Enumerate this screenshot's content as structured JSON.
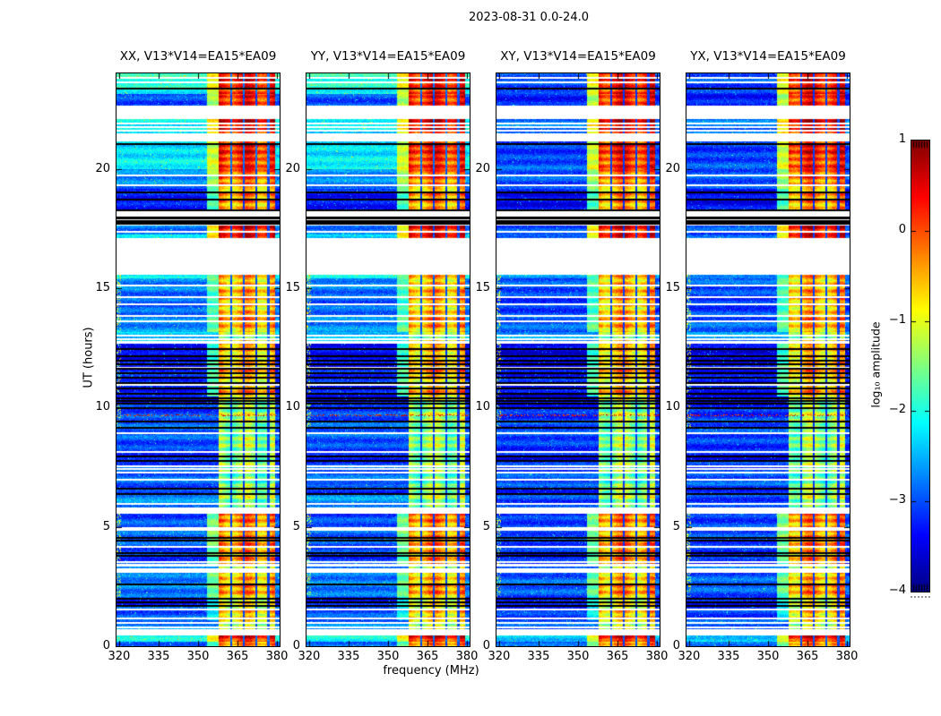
{
  "figure": {
    "title": "2023-08-31 0.0-24.0"
  },
  "chart_data": {
    "type": "heatmap",
    "title": "2023-08-31 0.0-24.0",
    "panels": [
      {
        "title": "XX, V13*V14=EA15*EA09"
      },
      {
        "title": "YY, V13*V14=EA15*EA09"
      },
      {
        "title": "XY, V13*V14=EA15*EA09"
      },
      {
        "title": "YX, V13*V14=EA15*EA09"
      }
    ],
    "xlabel": "frequency (MHz)",
    "ylabel": "UT (hours)",
    "xticks": [
      320,
      335,
      350,
      365,
      380
    ],
    "yticks": [
      0,
      5,
      10,
      15,
      20
    ],
    "xlim": [
      319,
      381
    ],
    "ylim": [
      0,
      24
    ],
    "grid": false,
    "colorbar": {
      "label": "log₁₀ amplitude",
      "ticks": [
        1,
        0,
        -1,
        -2,
        -3,
        -4
      ],
      "vmin": -4,
      "vmax": 1,
      "colormap": "jet",
      "position": "right"
    },
    "rfi_band": {
      "freq_range": [
        357.8,
        379.3
      ],
      "shoulder": [
        353.5,
        357.8
      ],
      "separators": [
        362.6,
        367.4,
        372.1,
        376.8
      ],
      "separator_width": 0.9
    },
    "time_segments": [
      [
        24.0,
        23.14,
        -2.0,
        -3.05,
        0.3,
        0
      ],
      [
        23.14,
        22.65,
        -2.9,
        -3.15,
        0.05,
        0
      ],
      [
        22.09,
        21.94,
        -2.2,
        -2.85,
        0.4,
        0
      ],
      [
        21.85,
        21.8,
        -2.3,
        -2.9,
        0.35,
        0
      ],
      [
        21.7,
        21.65,
        -2.3,
        -2.9,
        0.35,
        0
      ],
      [
        21.55,
        21.5,
        -2.3,
        -2.9,
        0.35,
        0
      ],
      [
        21.15,
        19.98,
        -2.15,
        -3.0,
        0.2,
        0
      ],
      [
        19.98,
        19.16,
        -2.8,
        -3.05,
        -0.2,
        0
      ],
      [
        19.16,
        18.23,
        -3.2,
        -3.3,
        -0.45,
        0
      ],
      [
        17.63,
        17.25,
        -2.9,
        -3.1,
        0.3,
        0
      ],
      [
        17.25,
        17.1,
        -2.35,
        -2.8,
        0.4,
        0
      ],
      [
        15.56,
        15.42,
        -2.3,
        -2.7,
        -0.6,
        1
      ],
      [
        15.42,
        13.16,
        -2.8,
        -3.0,
        -0.5,
        1
      ],
      [
        13.16,
        12.79,
        -2.45,
        -2.7,
        -1.2,
        0
      ],
      [
        12.68,
        10.46,
        -3.3,
        -3.4,
        -0.55,
        1
      ],
      [
        10.46,
        10.2,
        -3.3,
        -3.4,
        -1.2,
        0
      ],
      [
        10.2,
        9.15,
        -3.0,
        -3.1,
        -1.3,
        1
      ],
      [
        9.15,
        8.03,
        -3.0,
        -3.1,
        -1.45,
        0
      ],
      [
        8.03,
        7.76,
        -3.2,
        -3.25,
        -1.3,
        0
      ],
      [
        7.76,
        6.71,
        -2.95,
        -3.05,
        -1.5,
        0
      ],
      [
        6.71,
        6.34,
        -3.2,
        -3.25,
        -1.4,
        0
      ],
      [
        6.34,
        5.81,
        -2.6,
        -3.0,
        -1.3,
        0
      ],
      [
        5.59,
        4.99,
        -3.0,
        -3.1,
        -0.3,
        1
      ],
      [
        4.84,
        3.45,
        -3.0,
        -3.1,
        -0.35,
        1
      ],
      [
        3.32,
        3.27,
        -2.6,
        -2.8,
        -1.0,
        0
      ],
      [
        3.08,
        2.06,
        -2.85,
        -3.0,
        -0.45,
        1
      ],
      [
        2.06,
        1.69,
        -3.2,
        -3.25,
        -0.8,
        0
      ],
      [
        1.69,
        1.09,
        -2.85,
        -3.0,
        -0.8,
        0
      ],
      [
        1.09,
        0.71,
        -2.8,
        -2.95,
        -1.0,
        0
      ],
      [
        0.45,
        0.19,
        -2.2,
        -2.45,
        0.2,
        0
      ],
      [
        0.19,
        0.0,
        -2.9,
        -3.0,
        -0.5,
        0
      ]
    ],
    "flag_bands": [
      [
        18.0,
        17.87
      ],
      [
        17.84,
        17.66
      ]
    ],
    "white_lines": [
      23.85,
      23.66,
      19.76,
      19.35,
      17.4,
      15.15,
      14.66,
      14.36,
      13.88,
      13.65,
      13.05,
      12.9,
      12.2,
      11.7,
      11.0,
      8.96,
      8.18,
      7.58,
      7.46,
      7.31,
      7.01,
      6.0,
      5.7,
      5.62,
      4.2,
      3.56,
      1.58,
      1.2,
      1.01,
      0.83
    ],
    "black_lines": [
      23.4,
      21.08,
      19.05,
      18.75,
      18.3,
      12.49,
      12.19,
      12.0,
      11.85,
      11.66,
      11.48,
      11.29,
      11.06,
      10.84,
      10.61,
      10.42,
      10.3,
      10.21,
      10.0,
      9.45,
      9.19,
      7.99,
      7.8,
      6.64,
      6.41,
      4.58,
      4.46,
      3.94,
      3.83,
      2.63,
      2.03,
      1.88,
      1.73
    ],
    "speckle_rows": [
      9.71
    ]
  }
}
